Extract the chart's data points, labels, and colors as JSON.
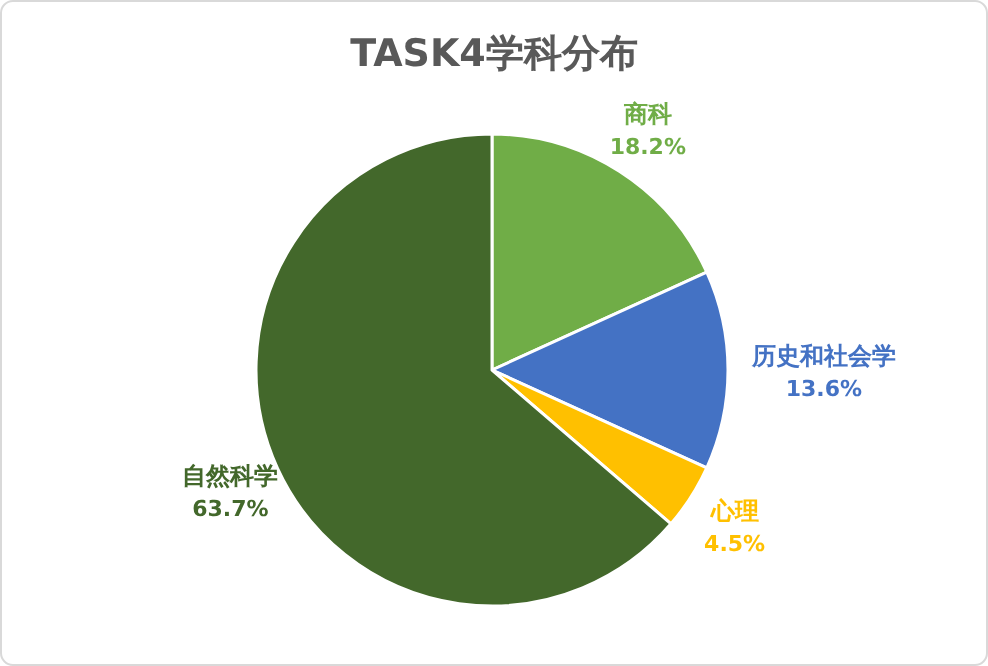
{
  "chart_data": {
    "type": "pie",
    "title": "TASK4学科分布",
    "categories": [
      "商科",
      "历史和社会学",
      "心理",
      "自然科学"
    ],
    "values": [
      18.2,
      13.6,
      4.5,
      63.7
    ],
    "colors": [
      "#70ad47",
      "#4472c4",
      "#ffc000",
      "#43682b"
    ],
    "value_labels": [
      "18.2%",
      "13.6%",
      "4.5%",
      "63.7%"
    ]
  }
}
